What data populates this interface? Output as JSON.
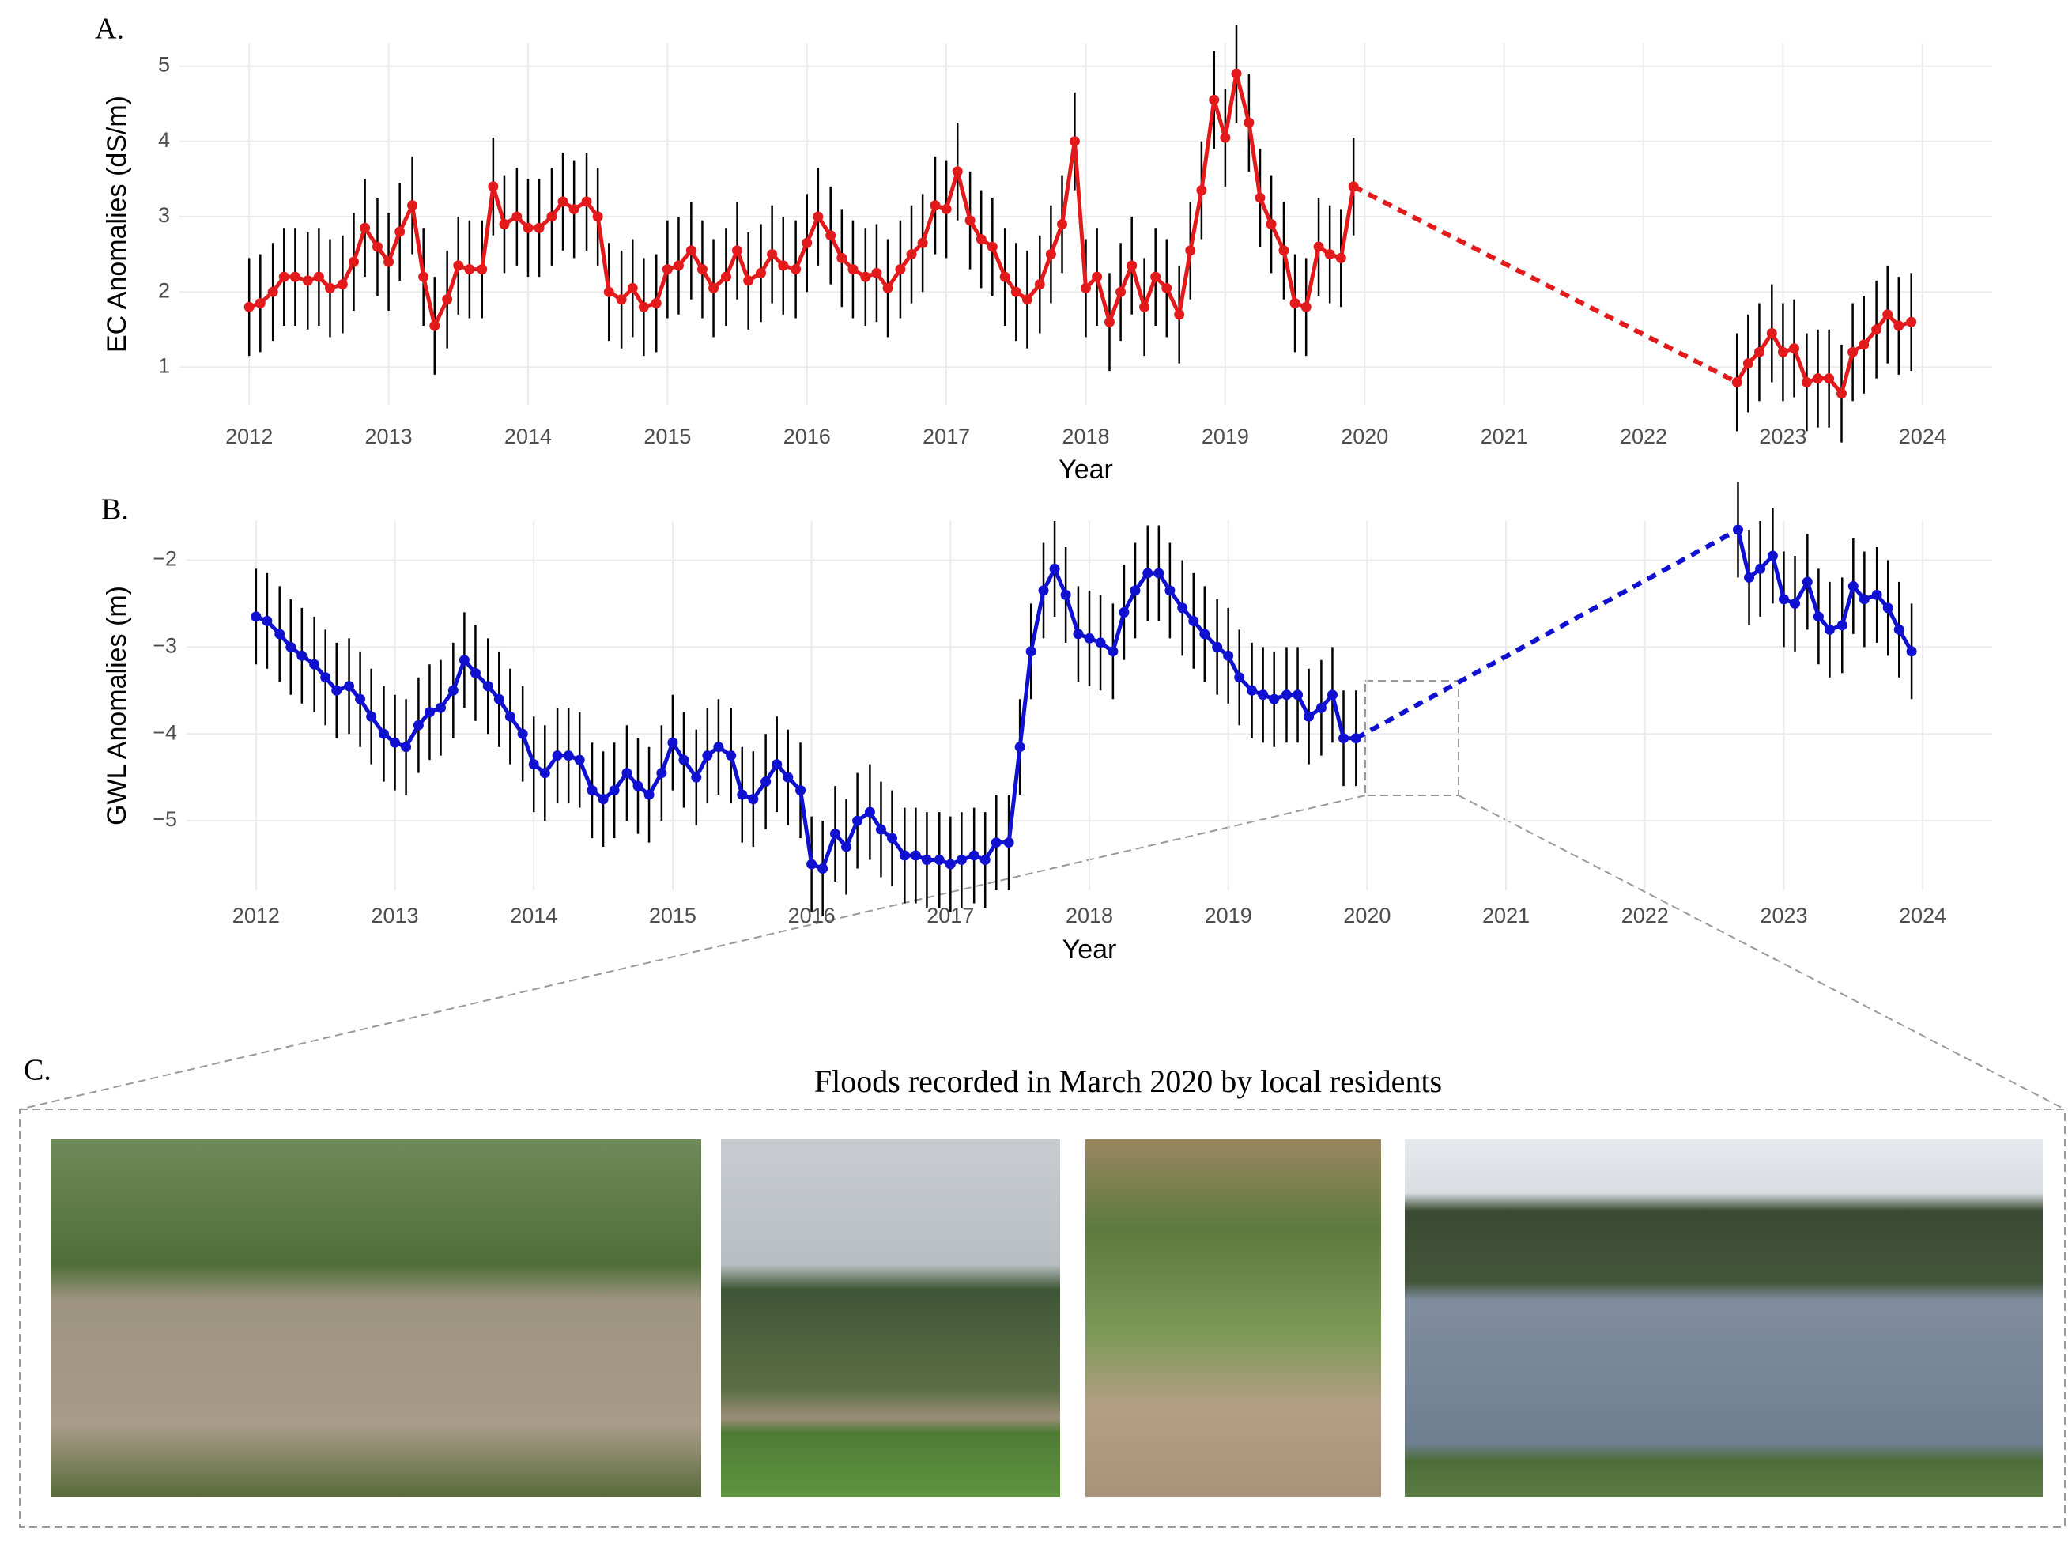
{
  "chart_data": [
    {
      "type": "line",
      "panel_label": "A.",
      "xlabel": "Year",
      "ylabel": "EC Anomalies (dS/m)",
      "color": "#e31a1c",
      "xlim": [
        2011.5,
        2024.5
      ],
      "xticks": [
        2012,
        2013,
        2014,
        2015,
        2016,
        2017,
        2018,
        2019,
        2020,
        2021,
        2022,
        2023,
        2024
      ],
      "ylim": [
        0.5,
        5.3
      ],
      "yticks": [
        1,
        2,
        3,
        4,
        5
      ],
      "grid": true,
      "error": 0.65,
      "x": [
        2012,
        2012.08,
        2012.17,
        2012.25,
        2012.33,
        2012.42,
        2012.5,
        2012.58,
        2012.67,
        2012.75,
        2012.83,
        2012.92,
        2013,
        2013.08,
        2013.17,
        2013.25,
        2013.33,
        2013.42,
        2013.5,
        2013.58,
        2013.67,
        2013.75,
        2013.83,
        2013.92,
        2014,
        2014.08,
        2014.17,
        2014.25,
        2014.33,
        2014.42,
        2014.5,
        2014.58,
        2014.67,
        2014.75,
        2014.83,
        2014.92,
        2015,
        2015.08,
        2015.17,
        2015.25,
        2015.33,
        2015.42,
        2015.5,
        2015.58,
        2015.67,
        2015.75,
        2015.83,
        2015.92,
        2016,
        2016.08,
        2016.17,
        2016.25,
        2016.33,
        2016.42,
        2016.5,
        2016.58,
        2016.67,
        2016.75,
        2016.83,
        2016.92,
        2017,
        2017.08,
        2017.17,
        2017.25,
        2017.33,
        2017.42,
        2017.5,
        2017.58,
        2017.67,
        2017.75,
        2017.83,
        2017.92,
        2018,
        2018.08,
        2018.17,
        2018.25,
        2018.33,
        2018.42,
        2018.5,
        2018.58,
        2018.67,
        2018.75,
        2018.83,
        2018.92,
        2019,
        2019.08,
        2019.17,
        2019.25,
        2019.33,
        2019.42,
        2019.5,
        2019.58,
        2019.67,
        2019.75,
        2019.83,
        2019.92,
        2022.67,
        2022.75,
        2022.83,
        2022.92,
        2023,
        2023.08,
        2023.17,
        2023.25,
        2023.33,
        2023.42,
        2023.5,
        2023.58,
        2023.67,
        2023.75,
        2023.83,
        2023.92
      ],
      "values": [
        1.8,
        1.85,
        2.0,
        2.2,
        2.2,
        2.15,
        2.2,
        2.05,
        2.1,
        2.4,
        2.85,
        2.6,
        2.4,
        2.8,
        3.15,
        2.2,
        1.55,
        1.9,
        2.35,
        2.3,
        2.3,
        3.4,
        2.9,
        3.0,
        2.85,
        2.85,
        3.0,
        3.2,
        3.1,
        3.2,
        3.0,
        2.0,
        1.9,
        2.05,
        1.8,
        1.85,
        2.3,
        2.35,
        2.55,
        2.3,
        2.05,
        2.2,
        2.55,
        2.15,
        2.25,
        2.5,
        2.35,
        2.3,
        2.65,
        3.0,
        2.75,
        2.45,
        2.3,
        2.2,
        2.25,
        2.05,
        2.3,
        2.5,
        2.65,
        3.15,
        3.1,
        3.6,
        2.95,
        2.7,
        2.6,
        2.2,
        2.0,
        1.9,
        2.1,
        2.5,
        2.9,
        4.0,
        2.05,
        2.2,
        1.6,
        2.0,
        2.35,
        1.8,
        2.2,
        2.05,
        1.7,
        2.55,
        3.35,
        4.55,
        4.05,
        4.9,
        4.25,
        3.25,
        2.9,
        2.55,
        1.85,
        1.8,
        2.6,
        2.5,
        2.45,
        3.4,
        0.8,
        1.05,
        1.2,
        1.45,
        1.2,
        1.25,
        0.8,
        0.85,
        0.85,
        0.65,
        1.2,
        1.3,
        1.5,
        1.7,
        1.55,
        1.6
      ]
    },
    {
      "type": "line",
      "panel_label": "B.",
      "xlabel": "Year",
      "ylabel": "GWL Anomalies (m)",
      "color": "#1010d0",
      "xlim": [
        2011.5,
        2024.5
      ],
      "xticks": [
        2012,
        2013,
        2014,
        2015,
        2016,
        2017,
        2018,
        2019,
        2020,
        2021,
        2022,
        2023,
        2024
      ],
      "ylim": [
        -5.8,
        -1.55
      ],
      "yticks": [
        {
          "value": -5,
          "label": "−5"
        },
        {
          "value": -4,
          "label": "−4"
        },
        {
          "value": -3,
          "label": "−3"
        },
        {
          "value": -2,
          "label": "−2"
        }
      ],
      "grid": true,
      "error": 0.55,
      "x": [
        2012,
        2012.08,
        2012.17,
        2012.25,
        2012.33,
        2012.42,
        2012.5,
        2012.58,
        2012.67,
        2012.75,
        2012.83,
        2012.92,
        2013,
        2013.08,
        2013.17,
        2013.25,
        2013.33,
        2013.42,
        2013.5,
        2013.58,
        2013.67,
        2013.75,
        2013.83,
        2013.92,
        2014,
        2014.08,
        2014.17,
        2014.25,
        2014.33,
        2014.42,
        2014.5,
        2014.58,
        2014.67,
        2014.75,
        2014.83,
        2014.92,
        2015,
        2015.08,
        2015.17,
        2015.25,
        2015.33,
        2015.42,
        2015.5,
        2015.58,
        2015.67,
        2015.75,
        2015.83,
        2015.92,
        2016,
        2016.08,
        2016.17,
        2016.25,
        2016.33,
        2016.42,
        2016.5,
        2016.58,
        2016.67,
        2016.75,
        2016.83,
        2016.92,
        2017,
        2017.08,
        2017.17,
        2017.25,
        2017.33,
        2017.42,
        2017.5,
        2017.58,
        2017.67,
        2017.75,
        2017.83,
        2017.92,
        2018,
        2018.08,
        2018.17,
        2018.25,
        2018.33,
        2018.42,
        2018.5,
        2018.58,
        2018.67,
        2018.75,
        2018.83,
        2018.92,
        2019,
        2019.08,
        2019.17,
        2019.25,
        2019.33,
        2019.42,
        2019.5,
        2019.58,
        2019.67,
        2019.75,
        2019.83,
        2019.92,
        2022.67,
        2022.75,
        2022.83,
        2022.92,
        2023,
        2023.08,
        2023.17,
        2023.25,
        2023.33,
        2023.42,
        2023.5,
        2023.58,
        2023.67,
        2023.75,
        2023.83,
        2023.92
      ],
      "values": [
        -2.65,
        -2.7,
        -2.85,
        -3.0,
        -3.1,
        -3.2,
        -3.35,
        -3.5,
        -3.45,
        -3.6,
        -3.8,
        -4.0,
        -4.1,
        -4.15,
        -3.9,
        -3.75,
        -3.7,
        -3.5,
        -3.15,
        -3.3,
        -3.45,
        -3.6,
        -3.8,
        -4.0,
        -4.35,
        -4.45,
        -4.25,
        -4.25,
        -4.3,
        -4.65,
        -4.75,
        -4.65,
        -4.45,
        -4.6,
        -4.7,
        -4.45,
        -4.1,
        -4.3,
        -4.5,
        -4.25,
        -4.15,
        -4.25,
        -4.7,
        -4.75,
        -4.55,
        -4.35,
        -4.5,
        -4.65,
        -5.5,
        -5.55,
        -5.15,
        -5.3,
        -5.0,
        -4.9,
        -5.1,
        -5.2,
        -5.4,
        -5.4,
        -5.45,
        -5.45,
        -5.5,
        -5.45,
        -5.4,
        -5.45,
        -5.25,
        -5.25,
        -4.15,
        -3.05,
        -2.35,
        -2.1,
        -2.4,
        -2.85,
        -2.9,
        -2.95,
        -3.05,
        -2.6,
        -2.35,
        -2.15,
        -2.15,
        -2.35,
        -2.55,
        -2.7,
        -2.85,
        -3.0,
        -3.1,
        -3.35,
        -3.5,
        -3.55,
        -3.6,
        -3.55,
        -3.55,
        -3.8,
        -3.7,
        -3.55,
        -4.05,
        -4.05,
        -1.65,
        -2.2,
        -2.1,
        -1.95,
        -2.45,
        -2.5,
        -2.25,
        -2.65,
        -2.8,
        -2.75,
        -2.3,
        -2.45,
        -2.4,
        -2.55,
        -2.8,
        -3.05
      ]
    }
  ],
  "photos": {
    "panel_label": "C.",
    "title": "Floods recorded in March 2020 by local residents"
  }
}
